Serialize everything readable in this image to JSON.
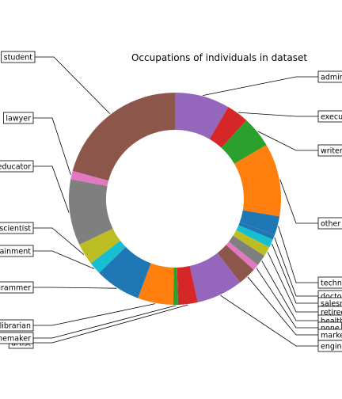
{
  "chart_data": {
    "type": "pie",
    "donut": true,
    "title": "Occupations of individuals in dataset",
    "start_angle_deg": 90,
    "direction": "clockwise",
    "slices": [
      {
        "label": "administrator",
        "value": 79,
        "color": "#9467bd"
      },
      {
        "label": "executive",
        "value": 32,
        "color": "#d62728"
      },
      {
        "label": "writer",
        "value": 45,
        "color": "#2ca02c"
      },
      {
        "label": "other",
        "value": 105,
        "color": "#ff7f0e"
      },
      {
        "label": "technician",
        "value": 27,
        "color": "#1f77b4"
      },
      {
        "label": "doctor",
        "value": 7,
        "color": "#1f77b4"
      },
      {
        "label": "salesman",
        "value": 12,
        "color": "#17becf"
      },
      {
        "label": "retired",
        "value": 14,
        "color": "#bcbd22"
      },
      {
        "label": "healthcare",
        "value": 16,
        "color": "#7f7f7f"
      },
      {
        "label": "none",
        "value": 9,
        "color": "#e377c2"
      },
      {
        "label": "marketing",
        "value": 26,
        "color": "#8c564b"
      },
      {
        "label": "engineer",
        "value": 67,
        "color": "#9467bd"
      },
      {
        "label": "artist",
        "value": 28,
        "color": "#d62728"
      },
      {
        "label": "homemaker",
        "value": 7,
        "color": "#2ca02c"
      },
      {
        "label": "librarian",
        "value": 51,
        "color": "#ff7f0e"
      },
      {
        "label": "programmer",
        "value": 66,
        "color": "#1f77b4"
      },
      {
        "label": "entertainment",
        "value": 18,
        "color": "#17becf"
      },
      {
        "label": "scientist",
        "value": 31,
        "color": "#bcbd22"
      },
      {
        "label": "educator",
        "value": 95,
        "color": "#7f7f7f"
      },
      {
        "label": "lawyer",
        "value": 12,
        "color": "#e377c2"
      },
      {
        "label": "student",
        "value": 196,
        "color": "#8c564b"
      }
    ]
  }
}
